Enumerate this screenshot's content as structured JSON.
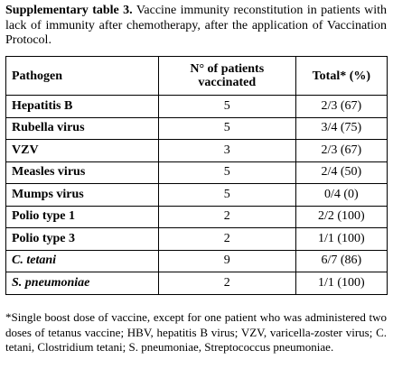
{
  "caption": {
    "label": "Supplementary table 3.",
    "text": "Vaccine immunity reconstitution in patients with lack of immunity after chemotherapy, after the application of Vaccination Protocol."
  },
  "table": {
    "headers": [
      "Pathogen",
      "N° of patients vaccinated",
      "Total* (%)"
    ],
    "rows": [
      [
        "Hepatitis B",
        "5",
        "2/3 (67)"
      ],
      [
        "Rubella virus",
        "5",
        "3/4 (75)"
      ],
      [
        "VZV",
        "3",
        "2/3 (67)"
      ],
      [
        "Measles virus",
        "5",
        "2/4 (50)"
      ],
      [
        "Mumps virus",
        "5",
        "0/4 (0)"
      ],
      [
        "Polio type 1",
        "2",
        "2/2 (100)"
      ],
      [
        "Polio type 3",
        "2",
        "1/1 (100)"
      ],
      [
        "C. tetani",
        "9",
        "6/7 (86)"
      ],
      [
        "S. pneumoniae",
        "2",
        "1/1 (100)"
      ]
    ]
  },
  "footnote": "*Single boost dose of vaccine, except for one patient who was administered two doses of tetanus vaccine; HBV, hepatitis B virus; VZV, varicella-zoster virus; C. tetani, Clostridium tetani; S. pneumoniae, Streptococcus pneumoniae."
}
